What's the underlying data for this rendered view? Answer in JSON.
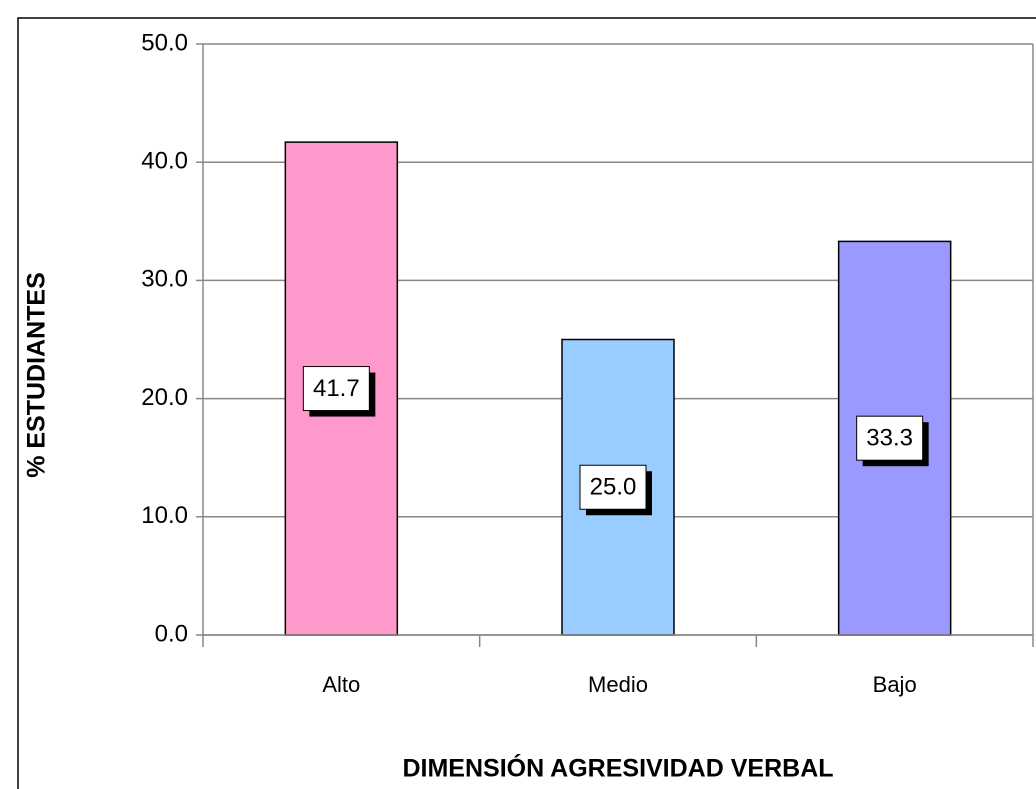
{
  "chart_data": {
    "type": "bar",
    "x_label": "DIMENSIÓN AGRESIVIDAD VERBAL",
    "y_label": "% ESTUDIANTES",
    "categories": [
      "Alto",
      "Medio",
      "Bajo"
    ],
    "values": [
      41.7,
      25.0,
      33.3
    ],
    "value_labels": [
      "41.7",
      "25.0",
      "33.3"
    ],
    "colors": [
      "#ff99cc",
      "#99ccff",
      "#9999ff"
    ],
    "ylim": [
      0,
      50
    ],
    "yticks": [
      {
        "value": 0,
        "label": "0.0"
      },
      {
        "value": 10,
        "label": "10.0"
      },
      {
        "value": 20,
        "label": "20.0"
      },
      {
        "value": 30,
        "label": "30.0"
      },
      {
        "value": 40,
        "label": "40.0"
      },
      {
        "value": 50,
        "label": "50.0"
      }
    ],
    "grid": true
  }
}
